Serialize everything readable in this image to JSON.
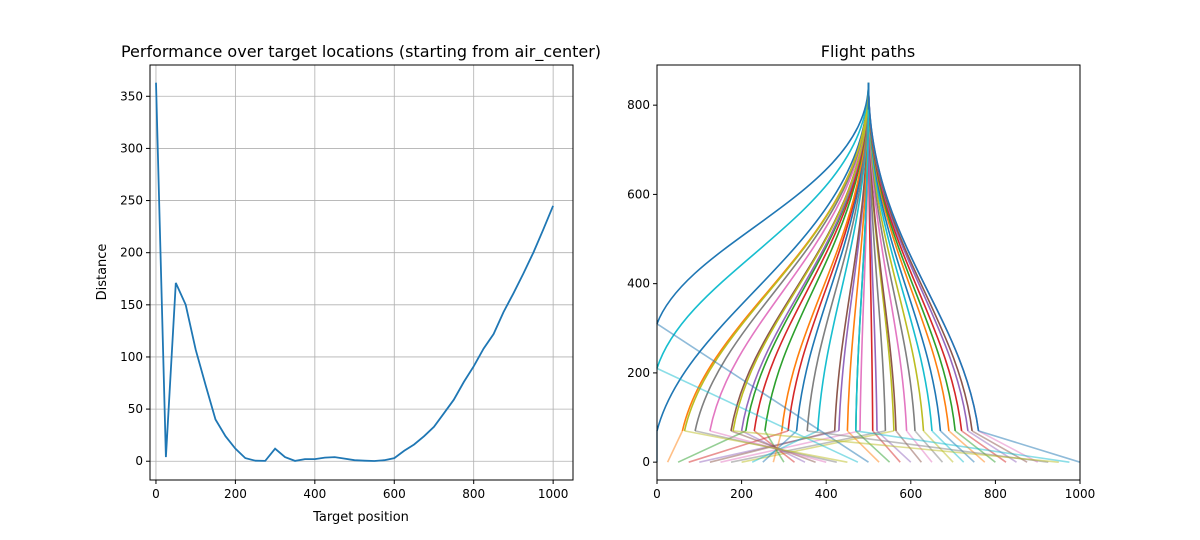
{
  "chart_data": [
    {
      "type": "line",
      "title": "Performance over target locations (starting from air_center)",
      "xlabel": "Target position",
      "ylabel": "Distance",
      "xlim": [
        -15,
        1050
      ],
      "ylim": [
        -18,
        380
      ],
      "xticks": [
        0,
        200,
        400,
        600,
        800,
        1000
      ],
      "yticks": [
        0,
        50,
        100,
        150,
        200,
        250,
        300,
        350
      ],
      "grid": true,
      "series": [
        {
          "color": "#1f77b4",
          "x": [
            0,
            25,
            50,
            75,
            100,
            125,
            150,
            175,
            200,
            225,
            250,
            275,
            300,
            325,
            350,
            375,
            400,
            425,
            450,
            475,
            500,
            525,
            550,
            575,
            600,
            625,
            650,
            675,
            700,
            725,
            750,
            775,
            800,
            825,
            850,
            875,
            900,
            925,
            950,
            975,
            1000
          ],
          "y": [
            363,
            4,
            171,
            150,
            107,
            73,
            40,
            24,
            12,
            3,
            0.5,
            0.3,
            12,
            4,
            0.3,
            2,
            2,
            3.5,
            4,
            2.5,
            1,
            0.5,
            0.2,
            1,
            3,
            10,
            16,
            24,
            33,
            46,
            59,
            76,
            91,
            108,
            122,
            143,
            161,
            180,
            200,
            222,
            245
          ]
        }
      ]
    },
    {
      "type": "line",
      "title": "Flight paths",
      "xlabel": "",
      "ylabel": "",
      "xlim": [
        0,
        1000
      ],
      "ylim": [
        -40,
        890
      ],
      "xticks": [
        0,
        200,
        400,
        600,
        800,
        1000
      ],
      "yticks": [
        0,
        200,
        400,
        600,
        800
      ],
      "grid": false,
      "start": [
        500,
        850
      ],
      "targets": [
        0,
        25,
        50,
        75,
        100,
        125,
        150,
        175,
        200,
        225,
        250,
        275,
        300,
        325,
        350,
        375,
        400,
        425,
        450,
        475,
        500,
        525,
        550,
        575,
        600,
        625,
        650,
        675,
        700,
        725,
        750,
        775,
        800,
        825,
        850,
        875,
        900,
        925,
        950,
        975,
        1000
      ],
      "landing_points": [
        [
          0,
          70
        ],
        [
          60,
          70
        ],
        [
          210,
          70
        ],
        [
          310,
          70
        ],
        [
          430,
          70
        ],
        [
          420,
          70
        ],
        [
          480,
          70
        ],
        [
          540,
          70
        ],
        [
          560,
          70
        ],
        [
          380,
          70
        ],
        [
          330,
          70
        ],
        [
          295,
          70
        ],
        [
          255,
          70
        ],
        [
          230,
          70
        ],
        [
          200,
          70
        ],
        [
          175,
          70
        ],
        [
          125,
          70
        ],
        [
          90,
          70
        ],
        [
          65,
          70
        ],
        [
          0,
          210
        ],
        [
          0,
          310
        ],
        [
          450,
          70
        ],
        [
          470,
          70
        ],
        [
          510,
          70
        ],
        [
          520,
          70
        ],
        [
          565,
          70
        ],
        [
          590,
          70
        ],
        [
          610,
          70
        ],
        [
          630,
          70
        ],
        [
          650,
          70
        ],
        [
          670,
          70
        ],
        [
          690,
          70
        ],
        [
          705,
          70
        ],
        [
          720,
          70
        ],
        [
          735,
          70
        ],
        [
          745,
          70
        ],
        [
          760,
          70
        ],
        [
          355,
          70
        ],
        [
          180,
          70
        ],
        [
          470,
          70
        ],
        [
          760,
          70
        ]
      ],
      "colors": [
        "#1f77b4",
        "#ff7f0e",
        "#2ca02c",
        "#d62728",
        "#9467bd",
        "#8c564b",
        "#e377c2",
        "#7f7f7f",
        "#bcbd22",
        "#17becf"
      ]
    }
  ]
}
